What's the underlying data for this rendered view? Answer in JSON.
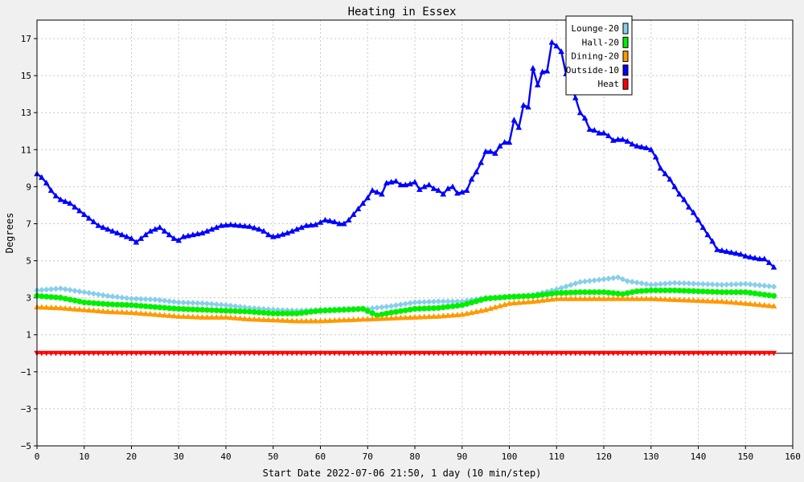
{
  "chart_data": {
    "type": "line",
    "title": "Heating in Essex",
    "xlabel": "Start Date 2022-07-06 21:50, 1 day (10 min/step)",
    "ylabel": "Degrees",
    "xlim": [
      0,
      160
    ],
    "ylim": [
      -5,
      18
    ],
    "xticks": [
      0,
      10,
      20,
      30,
      40,
      50,
      60,
      70,
      80,
      90,
      100,
      110,
      120,
      130,
      140,
      150,
      160
    ],
    "yticks": [
      -5,
      -3,
      -1,
      1,
      3,
      5,
      7,
      9,
      11,
      13,
      15,
      17
    ],
    "grid": true,
    "legend_position": "top-right",
    "series": [
      {
        "name": "Lounge-20",
        "color": "#87ceeb",
        "marker": "diamond",
        "points": [
          [
            0,
            3.4
          ],
          [
            5,
            3.5
          ],
          [
            10,
            3.3
          ],
          [
            15,
            3.1
          ],
          [
            20,
            2.95
          ],
          [
            25,
            2.9
          ],
          [
            30,
            2.75
          ],
          [
            35,
            2.7
          ],
          [
            40,
            2.6
          ],
          [
            45,
            2.45
          ],
          [
            50,
            2.35
          ],
          [
            55,
            2.3
          ],
          [
            60,
            2.35
          ],
          [
            65,
            2.4
          ],
          [
            70,
            2.4
          ],
          [
            75,
            2.55
          ],
          [
            80,
            2.75
          ],
          [
            85,
            2.8
          ],
          [
            90,
            2.8
          ],
          [
            95,
            3.0
          ],
          [
            100,
            3.05
          ],
          [
            105,
            3.15
          ],
          [
            110,
            3.45
          ],
          [
            115,
            3.85
          ],
          [
            120,
            4.0
          ],
          [
            123,
            4.1
          ],
          [
            125,
            3.9
          ],
          [
            130,
            3.7
          ],
          [
            135,
            3.8
          ],
          [
            140,
            3.75
          ],
          [
            145,
            3.7
          ],
          [
            150,
            3.75
          ],
          [
            156,
            3.6
          ]
        ]
      },
      {
        "name": "Hall-20",
        "color": "#00ee00",
        "marker": "circle",
        "points": [
          [
            0,
            3.1
          ],
          [
            5,
            3.0
          ],
          [
            10,
            2.75
          ],
          [
            15,
            2.65
          ],
          [
            20,
            2.6
          ],
          [
            25,
            2.5
          ],
          [
            30,
            2.4
          ],
          [
            35,
            2.35
          ],
          [
            40,
            2.3
          ],
          [
            45,
            2.25
          ],
          [
            50,
            2.15
          ],
          [
            55,
            2.15
          ],
          [
            60,
            2.3
          ],
          [
            65,
            2.35
          ],
          [
            69,
            2.4
          ],
          [
            72,
            2.05
          ],
          [
            75,
            2.2
          ],
          [
            80,
            2.4
          ],
          [
            85,
            2.45
          ],
          [
            90,
            2.6
          ],
          [
            95,
            2.95
          ],
          [
            100,
            3.05
          ],
          [
            105,
            3.1
          ],
          [
            110,
            3.25
          ],
          [
            115,
            3.3
          ],
          [
            120,
            3.3
          ],
          [
            124,
            3.2
          ],
          [
            127,
            3.35
          ],
          [
            130,
            3.4
          ],
          [
            135,
            3.4
          ],
          [
            140,
            3.35
          ],
          [
            145,
            3.3
          ],
          [
            150,
            3.3
          ],
          [
            156,
            3.1
          ]
        ]
      },
      {
        "name": "Dining-20",
        "color": "#ff9900",
        "marker": "triangle-up",
        "points": [
          [
            0,
            2.5
          ],
          [
            5,
            2.45
          ],
          [
            10,
            2.35
          ],
          [
            15,
            2.25
          ],
          [
            20,
            2.2
          ],
          [
            25,
            2.1
          ],
          [
            30,
            2.0
          ],
          [
            35,
            1.95
          ],
          [
            40,
            1.95
          ],
          [
            45,
            1.85
          ],
          [
            50,
            1.8
          ],
          [
            55,
            1.75
          ],
          [
            60,
            1.75
          ],
          [
            65,
            1.8
          ],
          [
            70,
            1.85
          ],
          [
            75,
            1.9
          ],
          [
            80,
            1.95
          ],
          [
            85,
            2.0
          ],
          [
            90,
            2.1
          ],
          [
            95,
            2.35
          ],
          [
            100,
            2.7
          ],
          [
            105,
            2.8
          ],
          [
            110,
            2.95
          ],
          [
            115,
            2.95
          ],
          [
            120,
            2.95
          ],
          [
            125,
            2.95
          ],
          [
            130,
            2.95
          ],
          [
            135,
            2.9
          ],
          [
            140,
            2.85
          ],
          [
            145,
            2.8
          ],
          [
            150,
            2.7
          ],
          [
            156,
            2.55
          ]
        ]
      },
      {
        "name": "Outside-10",
        "color": "#0000ff",
        "marker": "triangle-up",
        "points": [
          [
            0,
            9.7
          ],
          [
            1,
            9.5
          ],
          [
            2,
            9.2
          ],
          [
            3,
            8.8
          ],
          [
            4,
            8.5
          ],
          [
            5,
            8.3
          ],
          [
            6,
            8.2
          ],
          [
            7,
            8.1
          ],
          [
            8,
            7.9
          ],
          [
            9,
            7.7
          ],
          [
            10,
            7.5
          ],
          [
            11,
            7.3
          ],
          [
            12,
            7.1
          ],
          [
            13,
            6.9
          ],
          [
            14,
            6.8
          ],
          [
            15,
            6.7
          ],
          [
            16,
            6.6
          ],
          [
            17,
            6.5
          ],
          [
            18,
            6.4
          ],
          [
            19,
            6.3
          ],
          [
            20,
            6.2
          ],
          [
            21,
            6.0
          ],
          [
            22,
            6.2
          ],
          [
            23,
            6.4
          ],
          [
            24,
            6.6
          ],
          [
            25,
            6.7
          ],
          [
            26,
            6.8
          ],
          [
            27,
            6.6
          ],
          [
            28,
            6.4
          ],
          [
            29,
            6.2
          ],
          [
            30,
            6.1
          ],
          [
            31,
            6.3
          ],
          [
            33,
            6.4
          ],
          [
            35,
            6.5
          ],
          [
            37,
            6.7
          ],
          [
            39,
            6.9
          ],
          [
            41,
            6.95
          ],
          [
            43,
            6.9
          ],
          [
            45,
            6.85
          ],
          [
            47,
            6.7
          ],
          [
            48,
            6.6
          ],
          [
            49,
            6.4
          ],
          [
            50,
            6.3
          ],
          [
            51,
            6.35
          ],
          [
            53,
            6.5
          ],
          [
            55,
            6.7
          ],
          [
            57,
            6.9
          ],
          [
            59,
            6.95
          ],
          [
            61,
            7.2
          ],
          [
            63,
            7.1
          ],
          [
            64,
            7.0
          ],
          [
            65,
            7.0
          ],
          [
            66,
            7.2
          ],
          [
            67,
            7.5
          ],
          [
            68,
            7.8
          ],
          [
            69,
            8.1
          ],
          [
            70,
            8.4
          ],
          [
            71,
            8.8
          ],
          [
            72,
            8.7
          ],
          [
            73,
            8.6
          ],
          [
            74,
            9.2
          ],
          [
            75,
            9.25
          ],
          [
            76,
            9.3
          ],
          [
            77,
            9.1
          ],
          [
            78,
            9.1
          ],
          [
            79,
            9.15
          ],
          [
            80,
            9.25
          ],
          [
            81,
            8.85
          ],
          [
            82,
            9.0
          ],
          [
            83,
            9.1
          ],
          [
            84,
            8.9
          ],
          [
            85,
            8.8
          ],
          [
            86,
            8.6
          ],
          [
            87,
            8.9
          ],
          [
            88,
            9.0
          ],
          [
            89,
            8.65
          ],
          [
            90,
            8.7
          ],
          [
            91,
            8.8
          ],
          [
            92,
            9.4
          ],
          [
            93,
            9.8
          ],
          [
            94,
            10.3
          ],
          [
            95,
            10.9
          ],
          [
            96,
            10.9
          ],
          [
            97,
            10.8
          ],
          [
            98,
            11.2
          ],
          [
            99,
            11.4
          ],
          [
            100,
            11.4
          ],
          [
            101,
            12.6
          ],
          [
            102,
            12.2
          ],
          [
            103,
            13.4
          ],
          [
            104,
            13.3
          ],
          [
            105,
            15.4
          ],
          [
            106,
            14.5
          ],
          [
            107,
            15.2
          ],
          [
            108,
            15.25
          ],
          [
            109,
            16.8
          ],
          [
            110,
            16.6
          ],
          [
            111,
            16.3
          ],
          [
            112,
            15.1
          ],
          [
            113,
            14.6
          ],
          [
            114,
            13.8
          ],
          [
            115,
            13.0
          ],
          [
            116,
            12.7
          ],
          [
            117,
            12.1
          ],
          [
            118,
            12.05
          ],
          [
            119,
            11.9
          ],
          [
            120,
            11.9
          ],
          [
            121,
            11.75
          ],
          [
            122,
            11.5
          ],
          [
            123,
            11.55
          ],
          [
            124,
            11.55
          ],
          [
            125,
            11.45
          ],
          [
            126,
            11.3
          ],
          [
            127,
            11.2
          ],
          [
            128,
            11.15
          ],
          [
            129,
            11.1
          ],
          [
            130,
            11.0
          ],
          [
            131,
            10.6
          ],
          [
            132,
            10.0
          ],
          [
            133,
            9.7
          ],
          [
            134,
            9.4
          ],
          [
            135,
            9.0
          ],
          [
            136,
            8.6
          ],
          [
            137,
            8.3
          ],
          [
            138,
            7.9
          ],
          [
            139,
            7.6
          ],
          [
            140,
            7.2
          ],
          [
            141,
            6.8
          ],
          [
            142,
            6.4
          ],
          [
            143,
            6.05
          ],
          [
            144,
            5.6
          ],
          [
            145,
            5.55
          ],
          [
            146,
            5.5
          ],
          [
            147,
            5.45
          ],
          [
            148,
            5.4
          ],
          [
            149,
            5.35
          ],
          [
            150,
            5.25
          ],
          [
            151,
            5.2
          ],
          [
            152,
            5.15
          ],
          [
            153,
            5.1
          ],
          [
            154,
            5.1
          ],
          [
            155,
            4.9
          ],
          [
            156,
            4.65
          ]
        ]
      },
      {
        "name": "Heat",
        "color": "#ff0000",
        "marker": "triangle-down",
        "points": [
          [
            0,
            0
          ],
          [
            156,
            0
          ]
        ]
      }
    ]
  }
}
